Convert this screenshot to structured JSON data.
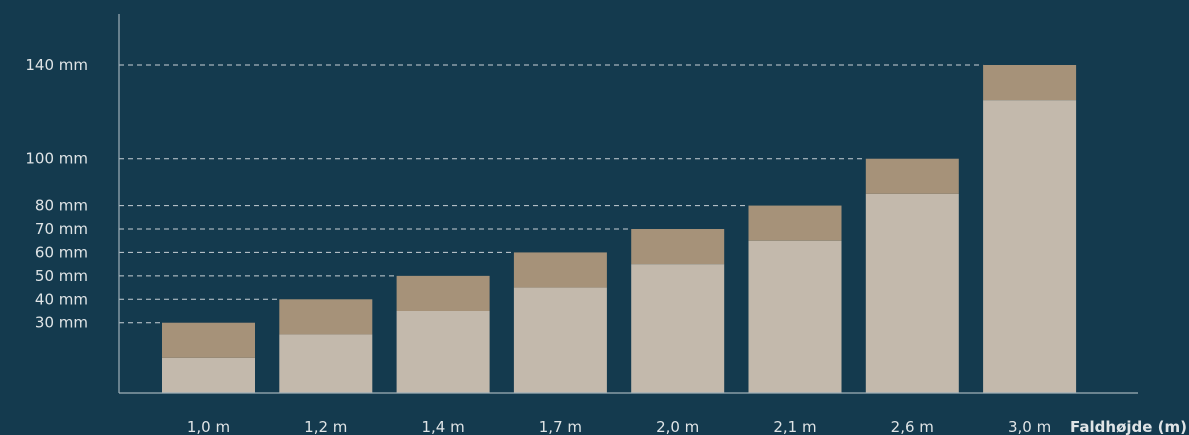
{
  "chart_data": {
    "type": "bar",
    "stacked": true,
    "categories": [
      "1,0 m",
      "1,2 m",
      "1,4 m",
      "1,7 m",
      "2,0 m",
      "2,1 m",
      "2,6 m",
      "3,0 m"
    ],
    "values": [
      30,
      40,
      50,
      60,
      70,
      80,
      100,
      140
    ],
    "series": [
      {
        "values": [
          15,
          25,
          35,
          45,
          55,
          65,
          85,
          125
        ],
        "color": "#c3b9ac"
      },
      {
        "values": [
          15,
          15,
          15,
          15,
          15,
          15,
          15,
          15
        ],
        "color": "#a69279"
      }
    ],
    "yticks": [
      {
        "value": 30,
        "label": "30 mm"
      },
      {
        "value": 40,
        "label": "40 mm"
      },
      {
        "value": 50,
        "label": "50 mm"
      },
      {
        "value": 60,
        "label": "60 mm"
      },
      {
        "value": 70,
        "label": "70 mm"
      },
      {
        "value": 80,
        "label": "80 mm"
      },
      {
        "value": 100,
        "label": "100 mm"
      },
      {
        "value": 140,
        "label": "140 mm"
      }
    ],
    "xlabel": "Faldhøjde (m)",
    "ylabel": "",
    "ylim": [
      0,
      140
    ],
    "grid": "dashed reference lines at each tick, extending to the bar of that height",
    "colors": {
      "background": "#143a4e",
      "axis": "#9fb0b9",
      "text": "#dfe4e6"
    }
  }
}
